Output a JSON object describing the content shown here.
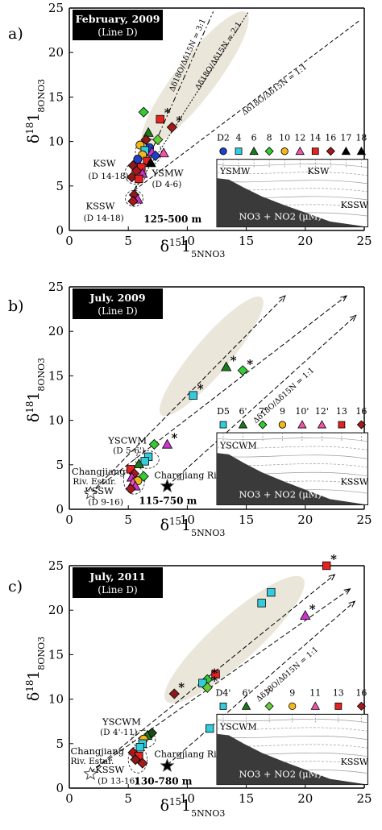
{
  "chart_data": [
    {
      "panel": "a)",
      "type": "scatter",
      "title": "February, 2009",
      "subtitle": "(Line D)",
      "xlabel": "δ15NNO3",
      "ylabel": "δ18ONO3",
      "xlim": [
        0,
        25
      ],
      "ylim": [
        0,
        25
      ],
      "xticks": [
        "0",
        "5",
        "10",
        "15",
        "20",
        "25"
      ],
      "yticks": [
        "0",
        "5",
        "10",
        "15",
        "20",
        "25"
      ],
      "lines": [
        {
          "label": "Δδ18O/Δδ15N = 3:1",
          "x1": 5.5,
          "y1": 4.5,
          "x2": 12.2,
          "y2": 24.6,
          "label_x": 10.2,
          "label_y": 19.6
        },
        {
          "label": "Δδ18O/Δδ15N = 2:1",
          "x1": 5.5,
          "y1": 4.5,
          "x2": 15.2,
          "y2": 24.6,
          "label_x": 12.8,
          "label_y": 19.5
        },
        {
          "label": "Δδ18O/Δδ15N = 1:1",
          "x1": 5.5,
          "y1": 4.5,
          "x2": 24.6,
          "y2": 23.6,
          "label_x": 17.5,
          "label_y": 15.6
        }
      ],
      "ellipse": {
        "x1": 6.3,
        "y1": 9.5,
        "x2": 15.0,
        "y2": 24.5,
        "halfwidth": 1.7
      },
      "groups": [
        {
          "label": "KSW",
          "sub": "(D 14-18)",
          "cx": 5.6,
          "cy": 6.4,
          "rx": 0.9,
          "ry": 1.2,
          "label_x": 2.0,
          "label_y": 7.2,
          "sub_x": 1.6,
          "sub_y": 5.8
        },
        {
          "label": "YSMW",
          "sub": "(D 4-6)",
          "cx": 6.7,
          "cy": 8.8,
          "rx": 1.1,
          "ry": 1.5,
          "label_x": 7.0,
          "label_y": 6.1,
          "sub_x": 7.0,
          "sub_y": 4.9
        },
        {
          "label": "KSSW",
          "sub": "(D 14-18)",
          "cx": 5.5,
          "cy": 3.6,
          "rx": 0.75,
          "ry": 0.9,
          "label_x": 1.4,
          "label_y": 2.4,
          "sub_x": 1.2,
          "sub_y": 1.1
        }
      ],
      "depth_label": "125-500 m",
      "depth_x": 6.3,
      "depth_y": 0.9,
      "points": [
        {
          "x": 6.3,
          "y": 13.3,
          "m": "diamond",
          "c": "#33cc33"
        },
        {
          "x": 7.7,
          "y": 12.5,
          "m": "square",
          "c": "#e52222",
          "star": true
        },
        {
          "x": 8.7,
          "y": 11.6,
          "m": "diamond",
          "c": "#a3191c",
          "star": true
        },
        {
          "x": 6.7,
          "y": 11.0,
          "m": "triangle",
          "c": "#1a7a1a"
        },
        {
          "x": 6.5,
          "y": 10.2,
          "m": "diamond",
          "c": "#8b1a1a"
        },
        {
          "x": 7.5,
          "y": 10.2,
          "m": "diamond",
          "c": "#66cc33"
        },
        {
          "x": 6.0,
          "y": 9.6,
          "m": "circle",
          "c": "#f3b71b"
        },
        {
          "x": 6.8,
          "y": 9.3,
          "m": "circle",
          "c": "#1f3fc8"
        },
        {
          "x": 6.4,
          "y": 9.0,
          "m": "square",
          "c": "#33ccdd"
        },
        {
          "x": 7.0,
          "y": 8.8,
          "m": "triangle",
          "c": "#cc33cc"
        },
        {
          "x": 8.0,
          "y": 8.7,
          "m": "triangle",
          "c": "#ee55aa"
        },
        {
          "x": 6.2,
          "y": 8.5,
          "m": "circle",
          "c": "#f3b71b"
        },
        {
          "x": 7.3,
          "y": 8.4,
          "m": "diamond",
          "c": "#1f3fc8"
        },
        {
          "x": 5.8,
          "y": 8.0,
          "m": "circle",
          "c": "#1f3fc8"
        },
        {
          "x": 6.6,
          "y": 7.8,
          "m": "square",
          "c": "#e52222"
        },
        {
          "x": 6.9,
          "y": 7.6,
          "m": "triangle",
          "c": "#000000"
        },
        {
          "x": 5.4,
          "y": 7.3,
          "m": "diamond",
          "c": "#8b1a1a"
        },
        {
          "x": 6.1,
          "y": 7.1,
          "m": "square",
          "c": "#e52222"
        },
        {
          "x": 5.7,
          "y": 6.7,
          "m": "diamond",
          "c": "#a3191c"
        },
        {
          "x": 6.2,
          "y": 6.4,
          "m": "triangle",
          "c": "#cc33cc"
        },
        {
          "x": 5.3,
          "y": 6.0,
          "m": "diamond",
          "c": "#8b1a1a"
        },
        {
          "x": 5.9,
          "y": 5.8,
          "m": "square",
          "c": "#e52222"
        },
        {
          "x": 5.5,
          "y": 4.0,
          "m": "diamond",
          "c": "#8b1a1a"
        },
        {
          "x": 5.8,
          "y": 3.5,
          "m": "triangle",
          "c": "#cc33cc"
        },
        {
          "x": 5.4,
          "y": 3.3,
          "m": "diamond",
          "c": "#a3191c"
        }
      ],
      "legend": {
        "x1": 12.5,
        "x2": 25.3,
        "items": [
          {
            "label": "D2",
            "m": "circle",
            "c": "#1f3fc8"
          },
          {
            "label": "4",
            "m": "square",
            "c": "#33ccdd"
          },
          {
            "label": "6",
            "m": "triangle",
            "c": "#1a7a1a"
          },
          {
            "label": "8",
            "m": "diamond",
            "c": "#33cc33"
          },
          {
            "label": "10",
            "m": "circle",
            "c": "#f3b71b"
          },
          {
            "label": "12",
            "m": "triangle",
            "c": "#ee55aa"
          },
          {
            "label": "14",
            "m": "square",
            "c": "#e52222"
          },
          {
            "label": "16",
            "m": "diamond",
            "c": "#a3191c"
          },
          {
            "label": "17",
            "m": "triangle",
            "c": "#000000"
          },
          {
            "label": "18",
            "m": "triangle",
            "c": "#000000"
          }
        ]
      },
      "inset": {
        "x1": 12.5,
        "y1": 0.4,
        "x2": 25.3,
        "y2": 8.0,
        "notes": [
          "YSMW",
          "KSW",
          "KSSW"
        ],
        "caption": "NO3 + NO2 (μM)"
      }
    },
    {
      "panel": "b)",
      "type": "scatter",
      "title": "July. 2009",
      "subtitle": "(Line D)",
      "xlabel": "δ15NNO3",
      "ylabel": "δ18ONO3",
      "xlim": [
        0,
        25
      ],
      "ylim": [
        0,
        25
      ],
      "xticks": [
        "0",
        "5",
        "10",
        "15",
        "20",
        "25"
      ],
      "yticks": [
        "0",
        "5",
        "10",
        "15",
        "20",
        "25"
      ],
      "lines": [
        {
          "label": "",
          "x1": 1.8,
          "y1": 1.8,
          "x2": 18.3,
          "y2": 24.0,
          "label_x": 0,
          "label_y": 0
        },
        {
          "label": "",
          "x1": 1.8,
          "y1": 1.8,
          "x2": 23.5,
          "y2": 24.0,
          "label_x": 0,
          "label_y": 0
        },
        {
          "label": "Δδ18O/Δδ15N = 1:1",
          "x1": 8.3,
          "y1": 2.6,
          "x2": 24.3,
          "y2": 21.8,
          "label_x": 18.3,
          "label_y": 12.6
        }
      ],
      "ellipse": {
        "x1": 7.8,
        "y1": 10.6,
        "x2": 16.3,
        "y2": 23.8,
        "halfwidth": 1.5
      },
      "groups": [
        {
          "label": "YSCWM",
          "sub": "(D 5-6')",
          "cx": 6.6,
          "cy": 5.6,
          "rx": 1.0,
          "ry": 1.0,
          "label_x": 3.3,
          "label_y": 7.4,
          "sub_x": 3.7,
          "sub_y": 6.3
        },
        {
          "label": "KSSW",
          "sub": "(D 9-16)",
          "cx": 5.5,
          "cy": 3.3,
          "rx": 0.9,
          "ry": 1.6,
          "label_x": 1.3,
          "label_y": 1.7,
          "sub_x": 1.6,
          "sub_y": 0.5
        },
        {
          "label": "Changjiang",
          "sub": "Riv. Estur.",
          "cx": 0,
          "cy": 0,
          "rx": 0,
          "ry": 0,
          "label_x": 0.2,
          "label_y": 3.9,
          "sub_x": 0.3,
          "sub_y": 2.8
        }
      ],
      "depth_label": "115-750 m",
      "depth_x": 5.9,
      "depth_y": 0.6,
      "annotations": [
        {
          "text": "Chargjiang Riv.",
          "x": 7.2,
          "y": 3.5
        }
      ],
      "open_star": {
        "x": 1.8,
        "y": 1.8
      },
      "filled_star": {
        "x": 8.3,
        "y": 2.6
      },
      "points": [
        {
          "x": 13.3,
          "y": 16.0,
          "m": "triangle",
          "c": "#1a7a1a",
          "star": true
        },
        {
          "x": 14.7,
          "y": 15.6,
          "m": "diamond",
          "c": "#33cc33",
          "star": true
        },
        {
          "x": 10.5,
          "y": 12.8,
          "m": "square",
          "c": "#33ccdd",
          "star": true
        },
        {
          "x": 8.3,
          "y": 7.3,
          "m": "triangle",
          "c": "#cc33cc",
          "star": true
        },
        {
          "x": 7.2,
          "y": 7.3,
          "m": "diamond",
          "c": "#33cc33"
        },
        {
          "x": 6.7,
          "y": 5.9,
          "m": "square",
          "c": "#33ccdd"
        },
        {
          "x": 6.4,
          "y": 5.4,
          "m": "square",
          "c": "#33ccdd"
        },
        {
          "x": 5.9,
          "y": 5.1,
          "m": "triangle",
          "c": "#1a7a1a"
        },
        {
          "x": 5.2,
          "y": 4.5,
          "m": "square",
          "c": "#e52222"
        },
        {
          "x": 5.5,
          "y": 4.0,
          "m": "diamond",
          "c": "#a3191c"
        },
        {
          "x": 6.3,
          "y": 3.7,
          "m": "diamond",
          "c": "#33cc33"
        },
        {
          "x": 5.3,
          "y": 3.6,
          "m": "triangle",
          "c": "#cc33cc"
        },
        {
          "x": 5.8,
          "y": 3.2,
          "m": "circle",
          "c": "#f3b71b"
        },
        {
          "x": 5.4,
          "y": 3.0,
          "m": "triangle",
          "c": "#ee55aa"
        },
        {
          "x": 5.6,
          "y": 2.6,
          "m": "triangle",
          "c": "#cc33cc"
        },
        {
          "x": 5.2,
          "y": 2.3,
          "m": "diamond",
          "c": "#a3191c"
        }
      ],
      "legend": {
        "x1": 12.5,
        "x2": 25.3,
        "items": [
          {
            "label": "D5",
            "m": "square",
            "c": "#33ccdd"
          },
          {
            "label": "6'",
            "m": "triangle",
            "c": "#1a7a1a"
          },
          {
            "label": "7'",
            "m": "diamond",
            "c": "#33cc33"
          },
          {
            "label": "9",
            "m": "circle",
            "c": "#f3b71b"
          },
          {
            "label": "10'",
            "m": "triangle",
            "c": "#ee55aa"
          },
          {
            "label": "12'",
            "m": "triangle",
            "c": "#ee55aa"
          },
          {
            "label": "13",
            "m": "square",
            "c": "#e52222"
          },
          {
            "label": "16",
            "m": "diamond",
            "c": "#a3191c"
          }
        ]
      },
      "inset": {
        "x1": 12.5,
        "y1": 0.5,
        "x2": 25.3,
        "y2": 8.6,
        "notes": [
          "YSCWM",
          "KSSW"
        ],
        "caption": "NO3 + NO2 (μM)"
      }
    },
    {
      "panel": "c)",
      "type": "scatter",
      "title": "July, 2011",
      "subtitle": "(Line D)",
      "xlabel": "δ15NNO3",
      "ylabel": "δ18ONO3",
      "xlim": [
        0,
        25
      ],
      "ylim": [
        0,
        25
      ],
      "xticks": [
        "0",
        "5",
        "10",
        "15",
        "20",
        "25"
      ],
      "yticks": [
        "0",
        "5",
        "10",
        "15",
        "20",
        "25"
      ],
      "lines": [
        {
          "label": "",
          "x1": 1.8,
          "y1": 1.8,
          "x2": 22.5,
          "y2": 24.0,
          "label_x": 0,
          "label_y": 0
        },
        {
          "label": "",
          "x1": 1.8,
          "y1": 1.8,
          "x2": 23.8,
          "y2": 22.4,
          "label_x": 0,
          "label_y": 0
        },
        {
          "label": "Δδ18O/Δδ15N = 1:1",
          "x1": 8.3,
          "y1": 2.6,
          "x2": 24.2,
          "y2": 21.0,
          "label_x": 18.6,
          "label_y": 12.6
        }
      ],
      "ellipse": {
        "x1": 8.2,
        "y1": 9.8,
        "x2": 19.8,
        "y2": 23.6,
        "halfwidth": 1.9
      },
      "groups": [
        {
          "label": "YSCWM",
          "sub": "(D 4'-11)",
          "cx": 6.3,
          "cy": 5.5,
          "rx": 1.0,
          "ry": 1.0,
          "label_x": 2.8,
          "label_y": 7.1,
          "sub_x": 2.6,
          "sub_y": 6.0
        },
        {
          "label": "KSSW",
          "sub": "(D 13-16)",
          "cx": 5.8,
          "cy": 3.2,
          "rx": 0.8,
          "ry": 1.5,
          "label_x": 2.2,
          "label_y": 1.7,
          "sub_x": 2.4,
          "sub_y": 0.5
        },
        {
          "label": "Changjiang",
          "sub": "Riv. Estur.",
          "cx": 0,
          "cy": 0,
          "rx": 0,
          "ry": 0,
          "label_x": 0.1,
          "label_y": 3.8,
          "sub_x": 0.1,
          "sub_y": 2.7
        }
      ],
      "depth_label": "130-780 m",
      "depth_x": 5.5,
      "depth_y": 0.4,
      "annotations": [
        {
          "text": "Chargjiang Riv.",
          "x": 7.2,
          "y": 3.5
        }
      ],
      "open_star": {
        "x": 1.8,
        "y": 1.6
      },
      "filled_star": {
        "x": 8.3,
        "y": 2.5
      },
      "points": [
        {
          "x": 21.8,
          "y": 25.0,
          "m": "square",
          "c": "#e52222",
          "star": true
        },
        {
          "x": 17.1,
          "y": 22.0,
          "m": "square",
          "c": "#33ccdd"
        },
        {
          "x": 16.3,
          "y": 20.8,
          "m": "square",
          "c": "#33ccdd"
        },
        {
          "x": 20.0,
          "y": 19.4,
          "m": "triangle",
          "c": "#cc33cc",
          "star": true
        },
        {
          "x": 12.4,
          "y": 12.8,
          "m": "square",
          "c": "#e52222"
        },
        {
          "x": 11.7,
          "y": 12.2,
          "m": "diamond",
          "c": "#33cc33",
          "star": true
        },
        {
          "x": 11.3,
          "y": 11.8,
          "m": "square",
          "c": "#33ccdd"
        },
        {
          "x": 11.7,
          "y": 11.3,
          "m": "diamond",
          "c": "#66cc33",
          "star": true
        },
        {
          "x": 8.9,
          "y": 10.6,
          "m": "diamond",
          "c": "#8b1a1a",
          "star": true
        },
        {
          "x": 11.9,
          "y": 6.7,
          "m": "square",
          "c": "#33ccdd"
        },
        {
          "x": 7.0,
          "y": 6.2,
          "m": "diamond",
          "c": "#1a4a1a"
        },
        {
          "x": 6.6,
          "y": 5.9,
          "m": "triangle",
          "c": "#1a7a1a"
        },
        {
          "x": 6.3,
          "y": 5.5,
          "m": "circle",
          "c": "#f3b71b"
        },
        {
          "x": 6.2,
          "y": 5.0,
          "m": "square",
          "c": "#33ccdd"
        },
        {
          "x": 6.0,
          "y": 4.6,
          "m": "square",
          "c": "#33ccdd"
        },
        {
          "x": 5.4,
          "y": 4.0,
          "m": "diamond",
          "c": "#a3191c"
        },
        {
          "x": 5.9,
          "y": 3.6,
          "m": "square",
          "c": "#e52222"
        },
        {
          "x": 5.6,
          "y": 3.2,
          "m": "diamond",
          "c": "#8b1a1a"
        },
        {
          "x": 6.2,
          "y": 2.8,
          "m": "diamond",
          "c": "#a3191c"
        }
      ],
      "legend": {
        "x1": 12.5,
        "x2": 25.3,
        "items": [
          {
            "label": "D4'",
            "m": "square",
            "c": "#33ccdd"
          },
          {
            "label": "6'",
            "m": "triangle",
            "c": "#1a7a1a"
          },
          {
            "label": "7'",
            "m": "diamond",
            "c": "#66cc33"
          },
          {
            "label": "9",
            "m": "circle",
            "c": "#f3b71b"
          },
          {
            "label": "11",
            "m": "triangle",
            "c": "#ee55aa"
          },
          {
            "label": "13",
            "m": "square",
            "c": "#e52222"
          },
          {
            "label": "16",
            "m": "diamond",
            "c": "#a3191c"
          }
        ]
      },
      "inset": {
        "x1": 12.5,
        "y1": 0.4,
        "x2": 25.3,
        "y2": 8.3,
        "notes": [
          "YSCWM",
          "KSSW"
        ],
        "caption": "NO3 + NO2 (μM)"
      }
    }
  ]
}
